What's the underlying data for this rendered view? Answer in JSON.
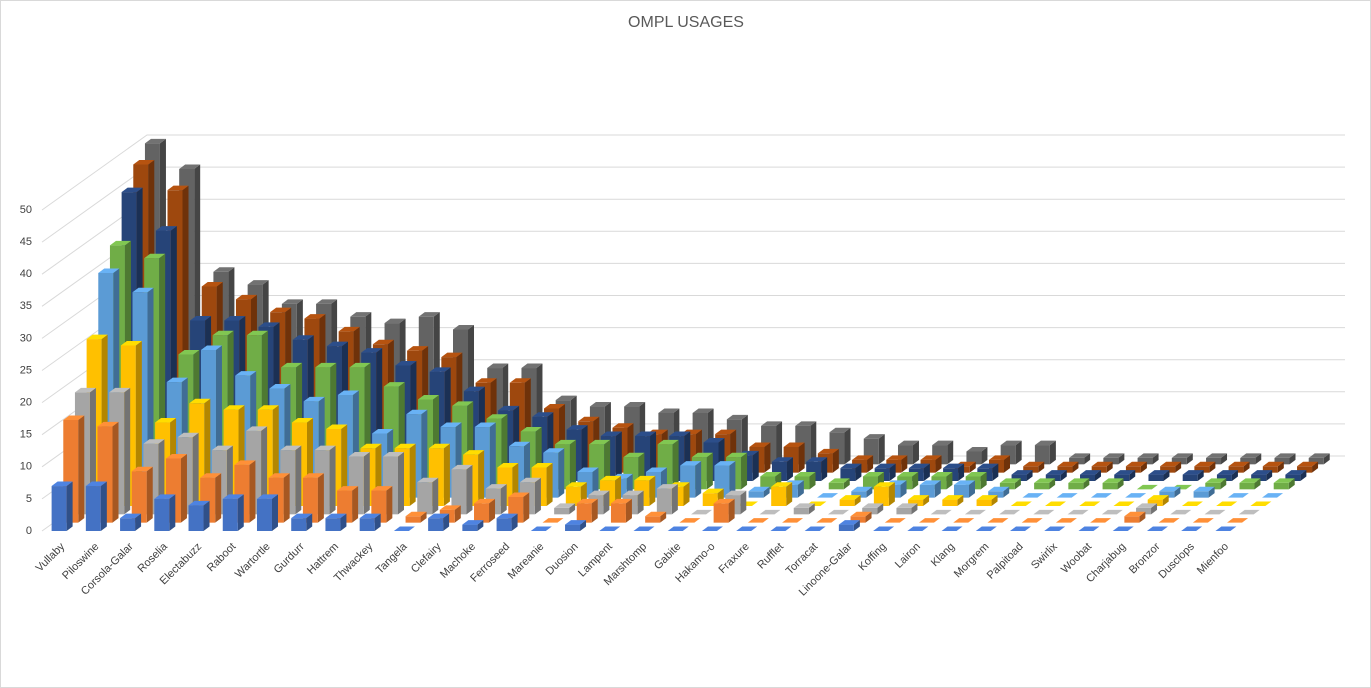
{
  "chart_data": {
    "type": "bar3d",
    "title": "OMPL USAGES",
    "categories": [
      "Vullaby",
      "Piloswine",
      "Corsola-Galar",
      "Roselia",
      "Electabuzz",
      "Raboot",
      "Wartortle",
      "Gurdurr",
      "Hattrem",
      "Thwackey",
      "Tangela",
      "Clefairy",
      "Machoke",
      "Ferroseed",
      "Mareanie",
      "Duosion",
      "Lampent",
      "Marshtomp",
      "Gabite",
      "Hakamo-o",
      "Fraxure",
      "Rufflet",
      "Torracat",
      "Linoone-Galar",
      "Koffing",
      "Lairon",
      "Klang",
      "Morgrem",
      "Palpitoad",
      "Swirlix",
      "Woobat",
      "Charjabug",
      "Bronzor",
      "Dusclops",
      "Mienfoo"
    ],
    "series": [
      {
        "color": "#4472c4",
        "values": [
          7,
          7,
          2,
          5,
          4,
          5,
          5,
          2,
          2,
          2,
          0,
          2,
          1,
          2,
          0,
          1,
          0,
          0,
          0,
          0,
          0,
          0,
          0,
          1,
          0,
          0,
          0,
          0,
          0,
          0,
          0,
          0,
          0,
          0,
          0
        ]
      },
      {
        "color": "#ed7d31",
        "values": [
          16,
          15,
          8,
          10,
          7,
          9,
          7,
          7,
          5,
          5,
          1,
          2,
          3,
          4,
          0,
          3,
          3,
          1,
          0,
          3,
          0,
          0,
          0,
          1,
          0,
          0,
          0,
          0,
          0,
          0,
          0,
          1,
          0,
          0,
          0
        ]
      },
      {
        "color": "#a5a5a5",
        "values": [
          19,
          19,
          11,
          12,
          10,
          13,
          10,
          10,
          9,
          9,
          5,
          7,
          4,
          5,
          1,
          3,
          3,
          4,
          0,
          3,
          0,
          1,
          0,
          1,
          1,
          0,
          0,
          0,
          0,
          0,
          0,
          1,
          0,
          0,
          0
        ]
      },
      {
        "color": "#ffc000",
        "values": [
          26,
          25,
          13,
          16,
          15,
          15,
          13,
          12,
          9,
          9,
          9,
          8,
          6,
          6,
          3,
          4,
          4,
          3,
          2,
          0,
          3,
          0,
          1,
          3,
          1,
          1,
          1,
          0,
          0,
          0,
          0,
          1,
          0,
          0,
          0
        ]
      },
      {
        "color": "#5b9bd5",
        "values": [
          35,
          32,
          18,
          23,
          19,
          17,
          15,
          16,
          10,
          13,
          11,
          11,
          8,
          7,
          4,
          3,
          4,
          5,
          5,
          1,
          2,
          0,
          1,
          2,
          2,
          2,
          1,
          0,
          0,
          0,
          0,
          1,
          1,
          0,
          0
        ]
      },
      {
        "color": "#70ad47",
        "values": [
          38,
          36,
          21,
          24,
          24,
          19,
          19,
          19,
          16,
          14,
          13,
          11,
          9,
          7,
          7,
          5,
          7,
          5,
          5,
          2,
          2,
          1,
          2,
          2,
          2,
          2,
          1,
          1,
          1,
          1,
          0,
          0,
          1,
          1,
          1
        ]
      },
      {
        "color": "#264478",
        "values": [
          45,
          39,
          25,
          25,
          24,
          22,
          21,
          20,
          18,
          17,
          14,
          11,
          10,
          8,
          7,
          7,
          7,
          6,
          4,
          3,
          3,
          2,
          2,
          2,
          2,
          2,
          1,
          1,
          1,
          1,
          1,
          1,
          1,
          1,
          1
        ]
      },
      {
        "color": "#9e480e",
        "values": [
          48,
          44,
          29,
          27,
          25,
          24,
          22,
          20,
          19,
          18,
          14,
          14,
          10,
          8,
          7,
          6,
          6,
          6,
          4,
          4,
          3,
          2,
          2,
          2,
          1,
          2,
          1,
          1,
          1,
          1,
          1,
          1,
          1,
          1,
          1
        ]
      },
      {
        "color": "#636363",
        "values": [
          50,
          46,
          30,
          28,
          25,
          25,
          23,
          22,
          23,
          21,
          15,
          15,
          10,
          9,
          9,
          8,
          8,
          7,
          6,
          6,
          5,
          4,
          3,
          3,
          2,
          3,
          3,
          1,
          1,
          1,
          1,
          1,
          1,
          1,
          1
        ]
      }
    ],
    "ylim": [
      0,
      50
    ],
    "yticks": [
      0,
      5,
      10,
      15,
      20,
      25,
      30,
      35,
      40,
      45,
      50
    ],
    "grid": true
  }
}
